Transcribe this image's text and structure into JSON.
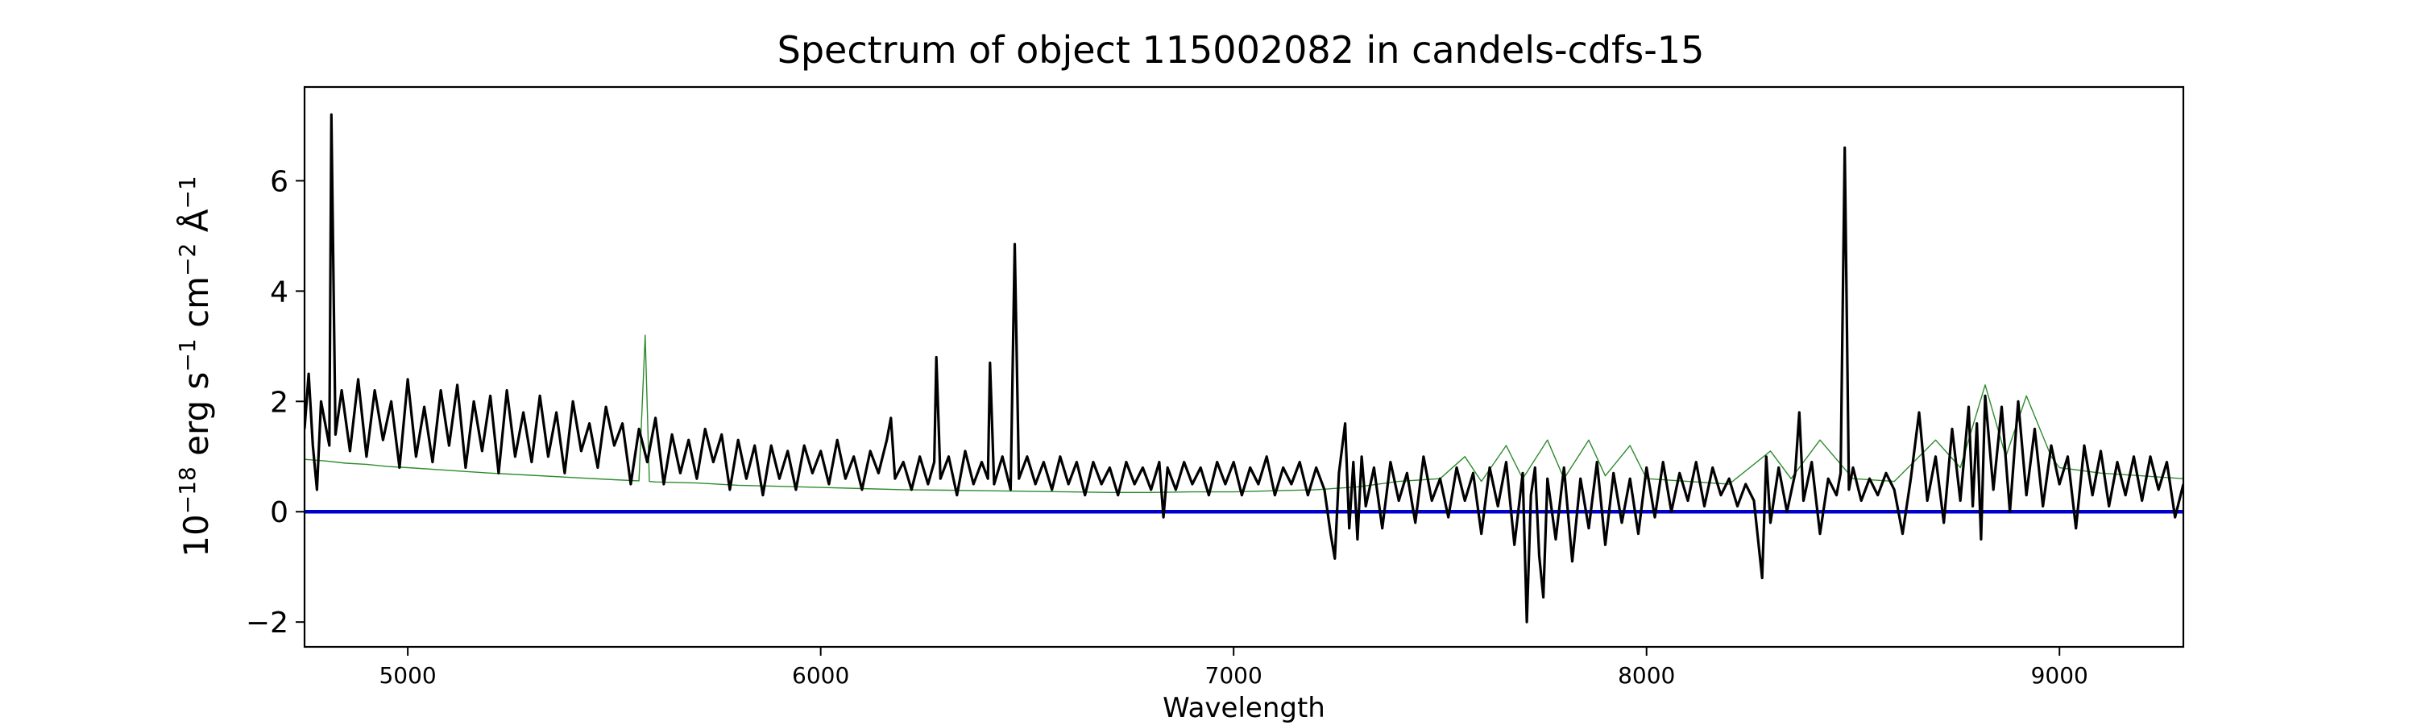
{
  "chart_data": {
    "type": "line",
    "title": "Spectrum of object 115002082 in candels-cdfs-15",
    "xlabel": "Wavelength",
    "ylabel": {
      "base": "10",
      "exp": "−18",
      "unit1": " erg s",
      "exp1": "−1",
      "unit2": " cm",
      "exp2": "−2",
      "unit3": " Å",
      "exp3": "−1"
    },
    "xlim": [
      4750,
      9300
    ],
    "ylim": [
      -2.45,
      7.7
    ],
    "xticks": [
      5000,
      6000,
      7000,
      8000,
      9000
    ],
    "yticks": [
      -2,
      0,
      2,
      4,
      6
    ],
    "grid": false,
    "series": [
      {
        "role": "flux",
        "color": "#000000",
        "points": [
          [
            4750,
            1.5
          ],
          [
            4760,
            2.5
          ],
          [
            4770,
            1.2
          ],
          [
            4780,
            0.4
          ],
          [
            4790,
            2.0
          ],
          [
            4800,
            1.6
          ],
          [
            4810,
            1.2
          ],
          [
            4815,
            7.2
          ],
          [
            4825,
            1.4
          ],
          [
            4840,
            2.2
          ],
          [
            4860,
            1.1
          ],
          [
            4880,
            2.4
          ],
          [
            4900,
            1.0
          ],
          [
            4920,
            2.2
          ],
          [
            4940,
            1.3
          ],
          [
            4960,
            2.0
          ],
          [
            4980,
            0.8
          ],
          [
            5000,
            2.4
          ],
          [
            5020,
            1.0
          ],
          [
            5040,
            1.9
          ],
          [
            5060,
            0.9
          ],
          [
            5080,
            2.2
          ],
          [
            5100,
            1.2
          ],
          [
            5120,
            2.3
          ],
          [
            5140,
            0.8
          ],
          [
            5160,
            2.0
          ],
          [
            5180,
            1.1
          ],
          [
            5200,
            2.1
          ],
          [
            5220,
            0.7
          ],
          [
            5240,
            2.2
          ],
          [
            5260,
            1.0
          ],
          [
            5280,
            1.8
          ],
          [
            5300,
            0.9
          ],
          [
            5320,
            2.1
          ],
          [
            5340,
            1.0
          ],
          [
            5360,
            1.8
          ],
          [
            5380,
            0.7
          ],
          [
            5400,
            2.0
          ],
          [
            5420,
            1.1
          ],
          [
            5440,
            1.6
          ],
          [
            5460,
            0.8
          ],
          [
            5480,
            1.9
          ],
          [
            5500,
            1.2
          ],
          [
            5520,
            1.6
          ],
          [
            5540,
            0.5
          ],
          [
            5560,
            1.5
          ],
          [
            5580,
            0.9
          ],
          [
            5600,
            1.7
          ],
          [
            5620,
            0.5
          ],
          [
            5640,
            1.4
          ],
          [
            5660,
            0.7
          ],
          [
            5680,
            1.3
          ],
          [
            5700,
            0.6
          ],
          [
            5720,
            1.5
          ],
          [
            5740,
            0.9
          ],
          [
            5760,
            1.4
          ],
          [
            5780,
            0.4
          ],
          [
            5800,
            1.3
          ],
          [
            5820,
            0.6
          ],
          [
            5840,
            1.2
          ],
          [
            5860,
            0.3
          ],
          [
            5880,
            1.2
          ],
          [
            5900,
            0.6
          ],
          [
            5920,
            1.1
          ],
          [
            5940,
            0.4
          ],
          [
            5960,
            1.2
          ],
          [
            5980,
            0.7
          ],
          [
            6000,
            1.1
          ],
          [
            6020,
            0.5
          ],
          [
            6040,
            1.3
          ],
          [
            6060,
            0.6
          ],
          [
            6080,
            1.0
          ],
          [
            6100,
            0.4
          ],
          [
            6120,
            1.1
          ],
          [
            6140,
            0.7
          ],
          [
            6160,
            1.3
          ],
          [
            6170,
            1.7
          ],
          [
            6180,
            0.6
          ],
          [
            6200,
            0.9
          ],
          [
            6220,
            0.4
          ],
          [
            6240,
            1.0
          ],
          [
            6260,
            0.5
          ],
          [
            6275,
            0.9
          ],
          [
            6280,
            2.8
          ],
          [
            6290,
            0.6
          ],
          [
            6310,
            1.0
          ],
          [
            6330,
            0.3
          ],
          [
            6350,
            1.1
          ],
          [
            6370,
            0.5
          ],
          [
            6390,
            0.9
          ],
          [
            6405,
            0.6
          ],
          [
            6410,
            2.7
          ],
          [
            6420,
            0.5
          ],
          [
            6440,
            1.0
          ],
          [
            6460,
            0.4
          ],
          [
            6470,
            4.85
          ],
          [
            6480,
            0.6
          ],
          [
            6500,
            1.0
          ],
          [
            6520,
            0.5
          ],
          [
            6540,
            0.9
          ],
          [
            6560,
            0.4
          ],
          [
            6580,
            1.0
          ],
          [
            6600,
            0.5
          ],
          [
            6620,
            0.9
          ],
          [
            6640,
            0.3
          ],
          [
            6660,
            0.9
          ],
          [
            6680,
            0.5
          ],
          [
            6700,
            0.8
          ],
          [
            6720,
            0.3
          ],
          [
            6740,
            0.9
          ],
          [
            6760,
            0.5
          ],
          [
            6780,
            0.8
          ],
          [
            6800,
            0.4
          ],
          [
            6820,
            0.9
          ],
          [
            6830,
            -0.1
          ],
          [
            6840,
            0.8
          ],
          [
            6860,
            0.4
          ],
          [
            6880,
            0.9
          ],
          [
            6900,
            0.5
          ],
          [
            6920,
            0.8
          ],
          [
            6940,
            0.3
          ],
          [
            6960,
            0.9
          ],
          [
            6980,
            0.5
          ],
          [
            7000,
            0.9
          ],
          [
            7020,
            0.3
          ],
          [
            7040,
            0.8
          ],
          [
            7060,
            0.5
          ],
          [
            7080,
            1.0
          ],
          [
            7100,
            0.3
          ],
          [
            7120,
            0.8
          ],
          [
            7140,
            0.5
          ],
          [
            7160,
            0.9
          ],
          [
            7180,
            0.3
          ],
          [
            7200,
            0.8
          ],
          [
            7220,
            0.4
          ],
          [
            7235,
            -0.4
          ],
          [
            7245,
            -0.85
          ],
          [
            7255,
            0.7
          ],
          [
            7270,
            1.6
          ],
          [
            7280,
            -0.3
          ],
          [
            7290,
            0.9
          ],
          [
            7300,
            -0.5
          ],
          [
            7310,
            1.0
          ],
          [
            7320,
            0.1
          ],
          [
            7340,
            0.8
          ],
          [
            7360,
            -0.3
          ],
          [
            7380,
            0.9
          ],
          [
            7400,
            0.2
          ],
          [
            7420,
            0.7
          ],
          [
            7440,
            -0.2
          ],
          [
            7460,
            1.0
          ],
          [
            7480,
            0.2
          ],
          [
            7500,
            0.6
          ],
          [
            7520,
            -0.1
          ],
          [
            7540,
            0.8
          ],
          [
            7560,
            0.2
          ],
          [
            7580,
            0.7
          ],
          [
            7600,
            -0.4
          ],
          [
            7620,
            0.8
          ],
          [
            7640,
            0.1
          ],
          [
            7660,
            0.9
          ],
          [
            7680,
            -0.6
          ],
          [
            7700,
            0.7
          ],
          [
            7710,
            -2.0
          ],
          [
            7720,
            0.3
          ],
          [
            7730,
            0.8
          ],
          [
            7740,
            -0.8
          ],
          [
            7750,
            -1.55
          ],
          [
            7760,
            0.6
          ],
          [
            7780,
            -0.5
          ],
          [
            7800,
            0.8
          ],
          [
            7820,
            -0.9
          ],
          [
            7840,
            0.6
          ],
          [
            7860,
            -0.3
          ],
          [
            7880,
            0.9
          ],
          [
            7900,
            -0.6
          ],
          [
            7920,
            0.7
          ],
          [
            7940,
            -0.2
          ],
          [
            7960,
            0.6
          ],
          [
            7980,
            -0.4
          ],
          [
            8000,
            0.8
          ],
          [
            8020,
            -0.1
          ],
          [
            8040,
            0.9
          ],
          [
            8060,
            0.0
          ],
          [
            8080,
            0.7
          ],
          [
            8100,
            0.2
          ],
          [
            8120,
            0.9
          ],
          [
            8140,
            0.1
          ],
          [
            8160,
            0.8
          ],
          [
            8180,
            0.3
          ],
          [
            8200,
            0.6
          ],
          [
            8220,
            0.1
          ],
          [
            8240,
            0.5
          ],
          [
            8260,
            0.2
          ],
          [
            8270,
            -0.5
          ],
          [
            8280,
            -1.2
          ],
          [
            8290,
            1.0
          ],
          [
            8300,
            -0.2
          ],
          [
            8320,
            0.8
          ],
          [
            8340,
            0.0
          ],
          [
            8360,
            0.7
          ],
          [
            8370,
            1.8
          ],
          [
            8380,
            0.2
          ],
          [
            8400,
            0.9
          ],
          [
            8420,
            -0.4
          ],
          [
            8440,
            0.6
          ],
          [
            8460,
            0.3
          ],
          [
            8470,
            0.7
          ],
          [
            8480,
            6.6
          ],
          [
            8490,
            0.4
          ],
          [
            8500,
            0.8
          ],
          [
            8520,
            0.2
          ],
          [
            8540,
            0.6
          ],
          [
            8560,
            0.3
          ],
          [
            8580,
            0.7
          ],
          [
            8600,
            0.4
          ],
          [
            8620,
            -0.4
          ],
          [
            8640,
            0.6
          ],
          [
            8660,
            1.8
          ],
          [
            8680,
            0.2
          ],
          [
            8700,
            1.0
          ],
          [
            8720,
            -0.2
          ],
          [
            8740,
            1.5
          ],
          [
            8760,
            0.2
          ],
          [
            8780,
            1.9
          ],
          [
            8790,
            0.1
          ],
          [
            8800,
            1.6
          ],
          [
            8810,
            -0.5
          ],
          [
            8820,
            2.1
          ],
          [
            8840,
            0.4
          ],
          [
            8860,
            1.9
          ],
          [
            8880,
            0.0
          ],
          [
            8900,
            2.0
          ],
          [
            8920,
            0.3
          ],
          [
            8940,
            1.5
          ],
          [
            8960,
            0.1
          ],
          [
            8980,
            1.2
          ],
          [
            9000,
            0.5
          ],
          [
            9020,
            1.0
          ],
          [
            9040,
            -0.3
          ],
          [
            9060,
            1.2
          ],
          [
            9080,
            0.3
          ],
          [
            9100,
            1.1
          ],
          [
            9120,
            0.1
          ],
          [
            9140,
            0.9
          ],
          [
            9160,
            0.3
          ],
          [
            9180,
            1.0
          ],
          [
            9200,
            0.2
          ],
          [
            9220,
            1.0
          ],
          [
            9240,
            0.4
          ],
          [
            9260,
            0.9
          ],
          [
            9280,
            -0.1
          ],
          [
            9300,
            0.5
          ]
        ]
      },
      {
        "role": "noise",
        "color": "#2e8b2e",
        "points": [
          [
            4750,
            0.95
          ],
          [
            4800,
            0.92
          ],
          [
            4850,
            0.88
          ],
          [
            4900,
            0.86
          ],
          [
            4950,
            0.82
          ],
          [
            5000,
            0.8
          ],
          [
            5100,
            0.75
          ],
          [
            5200,
            0.7
          ],
          [
            5300,
            0.66
          ],
          [
            5400,
            0.62
          ],
          [
            5500,
            0.58
          ],
          [
            5560,
            0.56
          ],
          [
            5575,
            3.2
          ],
          [
            5585,
            0.55
          ],
          [
            5600,
            0.54
          ],
          [
            5700,
            0.52
          ],
          [
            5800,
            0.48
          ],
          [
            5900,
            0.46
          ],
          [
            6000,
            0.44
          ],
          [
            6100,
            0.42
          ],
          [
            6200,
            0.4
          ],
          [
            6300,
            0.39
          ],
          [
            6400,
            0.38
          ],
          [
            6500,
            0.37
          ],
          [
            6600,
            0.36
          ],
          [
            6700,
            0.35
          ],
          [
            6800,
            0.35
          ],
          [
            6900,
            0.36
          ],
          [
            7000,
            0.36
          ],
          [
            7100,
            0.38
          ],
          [
            7200,
            0.4
          ],
          [
            7300,
            0.45
          ],
          [
            7400,
            0.55
          ],
          [
            7500,
            0.6
          ],
          [
            7560,
            1.0
          ],
          [
            7600,
            0.55
          ],
          [
            7660,
            1.2
          ],
          [
            7700,
            0.6
          ],
          [
            7760,
            1.3
          ],
          [
            7800,
            0.6
          ],
          [
            7860,
            1.3
          ],
          [
            7900,
            0.65
          ],
          [
            7960,
            1.2
          ],
          [
            8000,
            0.6
          ],
          [
            8100,
            0.55
          ],
          [
            8200,
            0.5
          ],
          [
            8300,
            1.1
          ],
          [
            8350,
            0.6
          ],
          [
            8420,
            1.3
          ],
          [
            8500,
            0.6
          ],
          [
            8600,
            0.55
          ],
          [
            8700,
            1.3
          ],
          [
            8760,
            0.8
          ],
          [
            8820,
            2.3
          ],
          [
            8870,
            1.0
          ],
          [
            8920,
            2.1
          ],
          [
            8980,
            1.0
          ],
          [
            9000,
            0.8
          ],
          [
            9100,
            0.7
          ],
          [
            9200,
            0.65
          ],
          [
            9300,
            0.6
          ]
        ]
      },
      {
        "role": "zero",
        "color": "#0000cc",
        "points": [
          [
            4750,
            0
          ],
          [
            9300,
            0
          ]
        ]
      }
    ]
  }
}
